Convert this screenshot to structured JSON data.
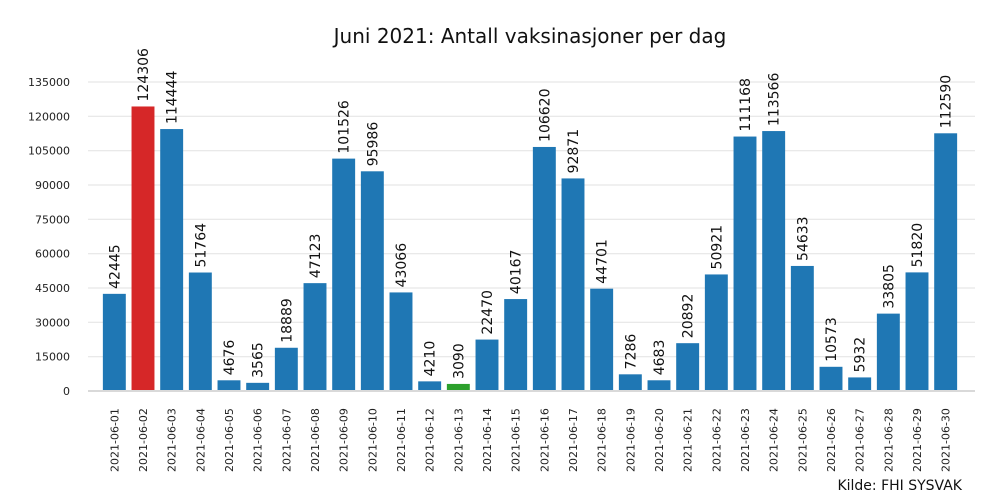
{
  "chart_data": {
    "type": "bar",
    "title": "Juni 2021: Antall vaksinasjoner per dag",
    "source_note": "Kilde: FHI SYSVAK",
    "xlabel": "",
    "ylabel": "",
    "ylim": [
      0,
      140000
    ],
    "yticks": [
      0,
      15000,
      30000,
      45000,
      60000,
      75000,
      90000,
      105000,
      120000,
      135000
    ],
    "grid": true,
    "categories": [
      "2021-06-01",
      "2021-06-02",
      "2021-06-03",
      "2021-06-04",
      "2021-06-05",
      "2021-06-06",
      "2021-06-07",
      "2021-06-08",
      "2021-06-09",
      "2021-06-10",
      "2021-06-11",
      "2021-06-12",
      "2021-06-13",
      "2021-06-14",
      "2021-06-15",
      "2021-06-16",
      "2021-06-17",
      "2021-06-18",
      "2021-06-19",
      "2021-06-20",
      "2021-06-21",
      "2021-06-22",
      "2021-06-23",
      "2021-06-24",
      "2021-06-25",
      "2021-06-26",
      "2021-06-27",
      "2021-06-28",
      "2021-06-29",
      "2021-06-30"
    ],
    "values": [
      42445,
      124306,
      114444,
      51764,
      4676,
      3565,
      18889,
      47123,
      101526,
      95986,
      43066,
      4210,
      3090,
      22470,
      40167,
      106620,
      92871,
      44701,
      7286,
      4683,
      20892,
      50921,
      111168,
      113566,
      54633,
      10573,
      5932,
      33805,
      51820,
      112590
    ],
    "colors": {
      "default": "#1f77b4",
      "max": "#d62728",
      "min": "#2ca02c"
    },
    "highlight": {
      "max_category": "2021-06-02",
      "min_category": "2021-06-13"
    }
  }
}
